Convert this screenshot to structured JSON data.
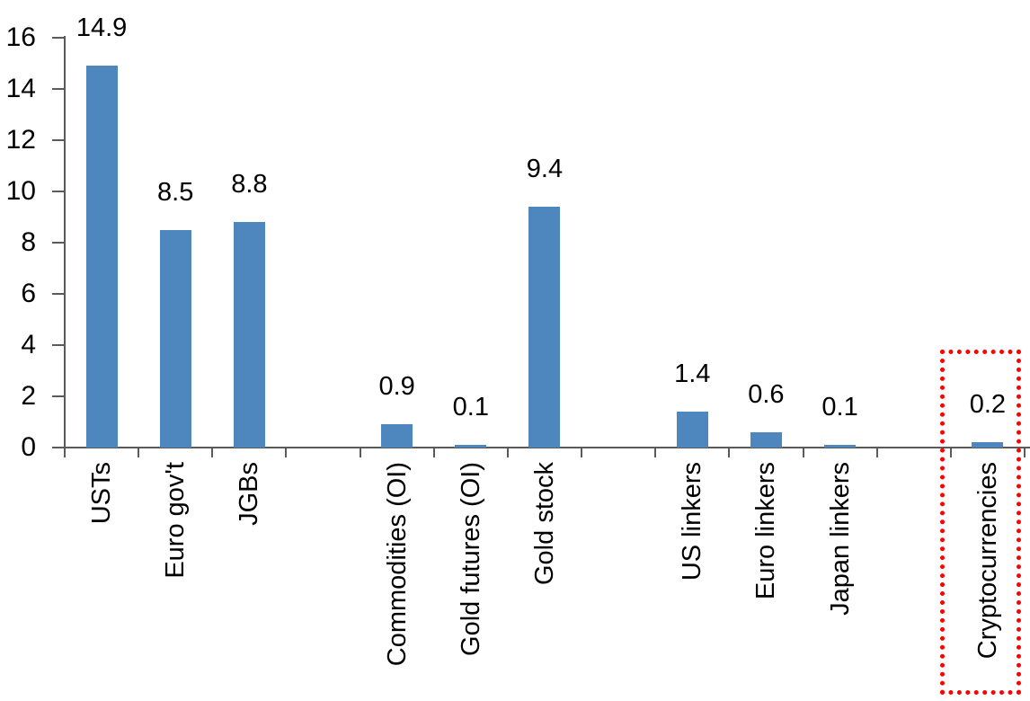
{
  "chart_data": {
    "type": "bar",
    "title": "",
    "xlabel": "",
    "ylabel": "",
    "categories": [
      "USTs",
      "Euro gov't",
      "JGBs",
      "",
      "Commodities (OI)",
      "Gold futures (OI)",
      "Gold stock",
      "",
      "US linkers",
      "Euro linkers",
      "Japan linkers",
      "",
      "Cryptocurrencies"
    ],
    "values": [
      14.9,
      8.5,
      8.8,
      null,
      0.9,
      0.1,
      9.4,
      null,
      1.4,
      0.6,
      0.1,
      null,
      0.2
    ],
    "data_labels": [
      "14.9",
      "8.5",
      "8.8",
      "",
      "0.9",
      "0.1",
      "9.4",
      "",
      "1.4",
      "0.6",
      "0.1",
      "",
      "0.2"
    ],
    "ylim": [
      0,
      16
    ],
    "yticks": [
      0,
      2,
      4,
      6,
      8,
      10,
      12,
      14,
      16
    ],
    "grid": false,
    "legend": false,
    "bar_color": "#4E86BE",
    "axis_color": "#5A5A5A",
    "text_color": "#000000",
    "highlight": {
      "category": "Cryptocurrencies",
      "style": "red-dotted-box",
      "color": "#FF0000"
    }
  }
}
